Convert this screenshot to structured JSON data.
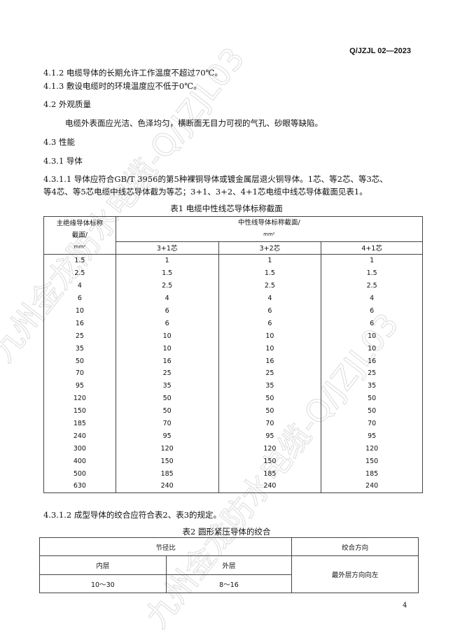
{
  "header": {
    "doc_code": "Q/JZJL 02—2023"
  },
  "paragraphs": {
    "p412": "4.1.2 电缆导体的长期允许工作温度不超过70℃。",
    "p413": "4.1.3 敷设电缆时的环境温度应不低于0℃。",
    "h42": "4.2  外观质量",
    "p42": "电缆外表面应光洁、色泽均匀，横断面无目力可视的气孔、砂眼等缺陷。",
    "h43": "4.3  性能",
    "h431": "4.3.1  导体",
    "p4311a": "4.3.1.1  导体应符合GB/T 3956的第5种裸铜导体或镀金属层退火铜导体。1芯、等2芯、等3芯、",
    "p4311b": "等4芯、等5芯电缆中线芯导体截为等芯；3+1、3+2、4+1芯电缆中线芯导体截面见表1。",
    "p4312": "4.3.1.2 成型导体的绞合应符合表2、表3的规定。"
  },
  "table1": {
    "caption": "表1  电缆中性线芯导体标称截面",
    "col0_header_line1": "主绝缘导体标称",
    "col0_header_line2": "截面/",
    "col0_header_unit": "mm²",
    "group_header": "中性线导体标称截面/",
    "group_unit": "mm²",
    "sub_headers": [
      "3+1芯",
      "3+2芯",
      "4+1芯"
    ],
    "rows": [
      [
        "1.5",
        "1",
        "1",
        "1"
      ],
      [
        "2.5",
        "1.5",
        "1.5",
        "1.5"
      ],
      [
        "4",
        "2.5",
        "2.5",
        "2.5"
      ],
      [
        "6",
        "4",
        "4",
        "4"
      ],
      [
        "10",
        "6",
        "6",
        "6"
      ],
      [
        "16",
        "6",
        "6",
        "6"
      ],
      [
        "25",
        "10",
        "10",
        "10"
      ],
      [
        "35",
        "10",
        "10",
        "10"
      ],
      [
        "50",
        "16",
        "16",
        "16"
      ],
      [
        "70",
        "25",
        "25",
        "25"
      ],
      [
        "95",
        "35",
        "35",
        "35"
      ],
      [
        "120",
        "50",
        "50",
        "50"
      ],
      [
        "150",
        "50",
        "50",
        "50"
      ],
      [
        "185",
        "70",
        "70",
        "70"
      ],
      [
        "240",
        "95",
        "95",
        "95"
      ],
      [
        "300",
        "120",
        "120",
        "120"
      ],
      [
        "400",
        "150",
        "150",
        "150"
      ],
      [
        "500",
        "185",
        "185",
        "185"
      ],
      [
        "630",
        "240",
        "240",
        "240"
      ]
    ]
  },
  "table2": {
    "caption": "表2  圆形紧压导体的绞合",
    "pitch_header": "节径比",
    "direction_header": "绞合方向",
    "inner": "内层",
    "outer": "外层",
    "inner_value": "10～30",
    "outer_value": "8～16",
    "direction_value": "最外层方向向左"
  },
  "footer": {
    "page_number": "4"
  },
  "watermark": "九州金龙防水电缆-Q/JZJL03"
}
